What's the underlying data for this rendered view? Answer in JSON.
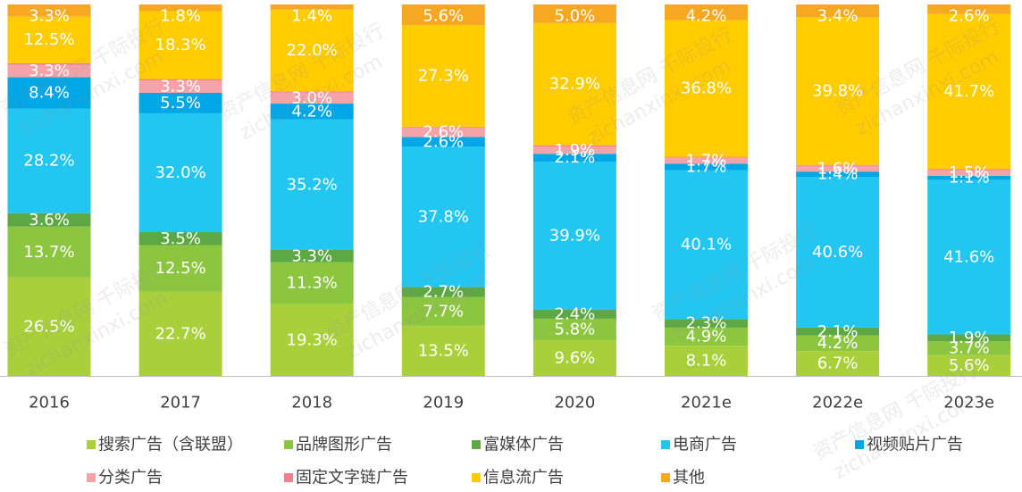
{
  "chart_data": {
    "type": "bar",
    "stacked": "percent",
    "categories": [
      "2016",
      "2017",
      "2018",
      "2019",
      "2020",
      "2021e",
      "2022e",
      "2023e"
    ],
    "ylim": [
      0,
      100
    ],
    "value_suffix": "%",
    "grid": false,
    "legend": "bottom",
    "series": [
      {
        "name": "搜索广告（含联盟）",
        "color": "#A9CF3B",
        "values": [
          26.5,
          22.7,
          19.3,
          13.5,
          9.6,
          8.1,
          6.7,
          5.6
        ]
      },
      {
        "name": "品牌图形广告",
        "color": "#8CC540",
        "values": [
          13.7,
          12.5,
          11.3,
          7.7,
          5.8,
          4.9,
          4.2,
          3.7
        ]
      },
      {
        "name": "富媒体广告",
        "color": "#5DA845",
        "values": [
          3.6,
          3.5,
          3.3,
          2.7,
          2.4,
          2.3,
          2.1,
          1.9
        ]
      },
      {
        "name": "电商广告",
        "color": "#22C6F1",
        "values": [
          28.2,
          32.0,
          35.2,
          37.8,
          39.9,
          40.1,
          40.6,
          41.6
        ]
      },
      {
        "name": "视频贴片广告",
        "color": "#00A7E6",
        "values": [
          8.4,
          5.5,
          4.2,
          2.6,
          2.1,
          1.7,
          1.4,
          1.1
        ]
      },
      {
        "name": "分类广告",
        "color": "#F4A3A9",
        "values": [
          3.3,
          3.3,
          3.0,
          2.6,
          1.9,
          1.7,
          1.6,
          1.5
        ]
      },
      {
        "name": "固定文字链广告",
        "color": "#F2808A",
        "values": [
          0.5,
          0.4,
          0.3,
          0.2,
          0.4,
          0.2,
          0.2,
          0.3
        ],
        "show_labels": false
      },
      {
        "name": "信息流广告",
        "color": "#FFCC00",
        "values": [
          12.5,
          18.3,
          22.0,
          27.3,
          32.9,
          36.8,
          39.8,
          41.7
        ]
      },
      {
        "name": "其他",
        "color": "#F7A823",
        "values": [
          3.3,
          1.8,
          1.4,
          5.6,
          5.0,
          4.2,
          3.4,
          2.6
        ]
      }
    ]
  },
  "watermark": [
    "资产信息网 千际投行",
    "zichanxinxi.com"
  ]
}
